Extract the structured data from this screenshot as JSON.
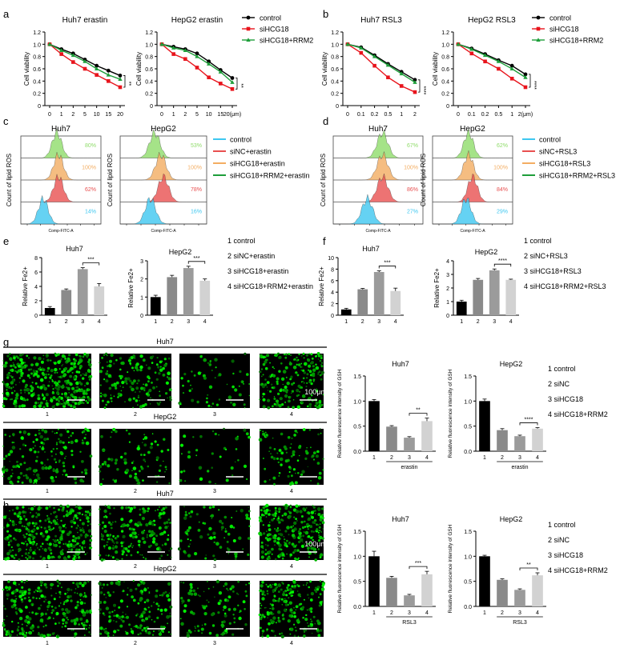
{
  "panel_letters": [
    "a",
    "b",
    "c",
    "d",
    "e",
    "f",
    "g",
    "h"
  ],
  "viability_legend": {
    "a": [
      "control",
      "siHCG18",
      "siHCG18+RRM2"
    ],
    "b": [
      "control",
      "siHCG18",
      "siHCG18+RRM2"
    ]
  },
  "flow_legend": {
    "c": [
      "control",
      "siNC+erastin",
      "siHCG18+erastin",
      "siHCG18+RRM2+erastin"
    ],
    "d": [
      "control",
      "siNC+RSL3",
      "siHCG18+RSL3",
      "siHCG18+RRM2+RSL3"
    ]
  },
  "flow_ylabel": "Count of lipid ROS",
  "flow_xlabel": "Comp-FITC-A",
  "flow_percents": {
    "c_huh7": [
      "80%",
      "100%",
      "62%",
      "14%"
    ],
    "c_hepg2": [
      "53%",
      "100%",
      "78%",
      "16%"
    ],
    "d_huh7": [
      "67%",
      "100%",
      "86%",
      "27%"
    ],
    "d_hepg2": [
      "62%",
      "100%",
      "84%",
      "29%"
    ]
  },
  "flow_titles": {
    "huh7": "Huh7",
    "hepg2": "HepG2"
  },
  "fe_legend": {
    "e": [
      "1 control",
      "2 siNC+erastin",
      "3 siHCG18+erastin",
      "4 siHCG18+RRM2+erastin"
    ],
    "f": [
      "1 control",
      "2 siNC+RSL3",
      "3 siHCG18+RSL3",
      "4 siHCG18+RRM2+RSL3"
    ]
  },
  "gsh_legend": [
    "1 control",
    "2 siNC",
    "3 siHCG18",
    "4 siHCG18+RRM2"
  ],
  "micro": {
    "huh7": "Huh7",
    "hepg2": "HepG2",
    "scale": "100μm",
    "lane_labels": [
      "1",
      "2",
      "3",
      "4"
    ]
  },
  "colors": {
    "control": "#000000",
    "siHCG18": "#e8141c",
    "siHCG18_RRM2": "#1e9e3a",
    "cyan": "#3ec7f0",
    "red": "#e85050",
    "orange": "#f3ad62",
    "green": "#8fdc6a",
    "bar1": "#000000",
    "bar2": "#8a8a8a",
    "bar3": "#9b9b9b",
    "bar4": "#d2d2d2"
  },
  "chart_data": [
    {
      "type": "line",
      "panel": "a",
      "title": "Huh7 erastin",
      "ylabel": "Cell viability",
      "xlabel": "",
      "x": [
        "0",
        "1",
        "2",
        "5",
        "10",
        "15",
        "20"
      ],
      "ylim": [
        0,
        1.2
      ],
      "yticks": [
        "0",
        "0.2",
        "0.4",
        "0.6",
        "0.8",
        "1.0",
        "1.2"
      ],
      "series": [
        {
          "name": "control",
          "values": [
            1.0,
            0.92,
            0.85,
            0.75,
            0.65,
            0.57,
            0.49
          ]
        },
        {
          "name": "siHCG18",
          "values": [
            1.0,
            0.84,
            0.71,
            0.6,
            0.5,
            0.4,
            0.3
          ]
        },
        {
          "name": "siHCG18+RRM2",
          "values": [
            1.0,
            0.9,
            0.82,
            0.72,
            0.6,
            0.5,
            0.43
          ]
        }
      ],
      "significance": "**"
    },
    {
      "type": "line",
      "panel": "a",
      "title": "HepG2 erastin",
      "ylabel": "Cell viability",
      "xlabel": "",
      "x": [
        "0",
        "1",
        "2",
        "5",
        "10",
        "15",
        "20(μm)"
      ],
      "ylim": [
        0,
        1.2
      ],
      "yticks": [
        "0",
        "0.2",
        "0.4",
        "0.6",
        "0.8",
        "1.0",
        "1.2"
      ],
      "series": [
        {
          "name": "control",
          "values": [
            1.0,
            0.96,
            0.92,
            0.85,
            0.72,
            0.58,
            0.45
          ]
        },
        {
          "name": "siHCG18",
          "values": [
            1.0,
            0.84,
            0.76,
            0.62,
            0.46,
            0.36,
            0.27
          ]
        },
        {
          "name": "siHCG18+RRM2",
          "values": [
            1.0,
            0.94,
            0.9,
            0.8,
            0.68,
            0.55,
            0.38
          ]
        }
      ],
      "significance": "**"
    },
    {
      "type": "line",
      "panel": "b",
      "title": "Huh7 RSL3",
      "ylabel": "Cell viability",
      "xlabel": "",
      "x": [
        "0",
        "0.1",
        "0.2",
        "0.5",
        "1",
        "2"
      ],
      "ylim": [
        0,
        1.2
      ],
      "yticks": [
        "0",
        "0.2",
        "0.4",
        "0.6",
        "0.8",
        "1.0",
        "1.2"
      ],
      "series": [
        {
          "name": "control",
          "values": [
            1.0,
            0.95,
            0.82,
            0.68,
            0.55,
            0.42
          ]
        },
        {
          "name": "siHCG18",
          "values": [
            1.0,
            0.86,
            0.65,
            0.46,
            0.32,
            0.22
          ]
        },
        {
          "name": "siHCG18+RRM2",
          "values": [
            1.0,
            0.94,
            0.8,
            0.66,
            0.52,
            0.38
          ]
        }
      ],
      "significance": "****"
    },
    {
      "type": "line",
      "panel": "b",
      "title": "HepG2 RSL3",
      "ylabel": "Cell viability",
      "xlabel": "",
      "x": [
        "0",
        "0.1",
        "0.2",
        "0.5",
        "1",
        "2(μm)"
      ],
      "ylim": [
        0,
        1.2
      ],
      "yticks": [
        "0",
        "0.2",
        "0.4",
        "0.6",
        "0.8",
        "1.0",
        "1.2"
      ],
      "series": [
        {
          "name": "control",
          "values": [
            1.0,
            0.93,
            0.84,
            0.74,
            0.65,
            0.51
          ]
        },
        {
          "name": "siHCG18",
          "values": [
            1.0,
            0.85,
            0.72,
            0.6,
            0.44,
            0.3
          ]
        },
        {
          "name": "siHCG18+RRM2",
          "values": [
            1.0,
            0.92,
            0.82,
            0.72,
            0.6,
            0.46
          ]
        }
      ],
      "significance": "****"
    },
    {
      "type": "bar",
      "panel": "e",
      "title": "Huh7",
      "ylabel": "Relative Fe2+",
      "categories": [
        "1",
        "2",
        "3",
        "4"
      ],
      "values": [
        1.0,
        3.5,
        6.4,
        4.0
      ],
      "errors": [
        0.2,
        0.15,
        0.2,
        0.4
      ],
      "ylim": [
        0,
        8
      ],
      "yticks": [
        "0",
        "2",
        "4",
        "6",
        "8"
      ],
      "significance": "***",
      "sig_between": [
        3,
        4
      ]
    },
    {
      "type": "bar",
      "panel": "e",
      "title": "HepG2",
      "ylabel": "Relative Fe2+",
      "categories": [
        "1",
        "2",
        "3",
        "4"
      ],
      "values": [
        1.0,
        2.1,
        2.6,
        1.9
      ],
      "errors": [
        0.1,
        0.1,
        0.1,
        0.1
      ],
      "ylim": [
        0,
        3
      ],
      "yticks": [
        "0",
        "1",
        "2",
        "3"
      ],
      "significance": "***",
      "sig_between": [
        3,
        4
      ]
    },
    {
      "type": "bar",
      "panel": "f",
      "title": "Huh7",
      "ylabel": "Relative Fe2+",
      "categories": [
        "1",
        "2",
        "3",
        "4"
      ],
      "values": [
        1.0,
        4.5,
        7.5,
        4.2
      ],
      "errors": [
        0.2,
        0.15,
        0.2,
        0.5
      ],
      "ylim": [
        0,
        10
      ],
      "yticks": [
        "0",
        "2",
        "4",
        "6",
        "8",
        "10"
      ],
      "significance": "***",
      "sig_between": [
        3,
        4
      ]
    },
    {
      "type": "bar",
      "panel": "f",
      "title": "HepG2",
      "ylabel": "Relative Fe2+",
      "categories": [
        "1",
        "2",
        "3",
        "4"
      ],
      "values": [
        1.0,
        2.6,
        3.3,
        2.6
      ],
      "errors": [
        0.1,
        0.1,
        0.1,
        0.05
      ],
      "ylim": [
        0,
        4
      ],
      "yticks": [
        "0",
        "1",
        "2",
        "3",
        "4"
      ],
      "significance": "****",
      "sig_between": [
        3,
        4
      ]
    },
    {
      "type": "bar",
      "panel": "g",
      "title": "Huh7",
      "ylabel": "Relative fluorescence intensity of GSH",
      "categories": [
        "1",
        "2",
        "3",
        "4"
      ],
      "values": [
        1.0,
        0.49,
        0.27,
        0.6
      ],
      "errors": [
        0.03,
        0.02,
        0.02,
        0.06
      ],
      "ylim": [
        0,
        1.5
      ],
      "yticks": [
        "0.0",
        "0.5",
        "1.0",
        "1.5"
      ],
      "group_label": "erastin",
      "significance": "**",
      "sig_between": [
        3,
        4
      ]
    },
    {
      "type": "bar",
      "panel": "g",
      "title": "HepG2",
      "ylabel": "Relative fluorescence intensity of GSH",
      "categories": [
        "1",
        "2",
        "3",
        "4"
      ],
      "values": [
        1.0,
        0.42,
        0.3,
        0.45
      ],
      "errors": [
        0.04,
        0.03,
        0.02,
        0.02
      ],
      "ylim": [
        0,
        1.5
      ],
      "yticks": [
        "0.0",
        "0.5",
        "1.0",
        "1.5"
      ],
      "group_label": "erastin",
      "significance": "****",
      "sig_between": [
        3,
        4
      ]
    },
    {
      "type": "bar",
      "panel": "h",
      "title": "Huh7",
      "ylabel": "Relative fluorescence intensity of GSH",
      "categories": [
        "1",
        "2",
        "3",
        "4"
      ],
      "values": [
        1.0,
        0.57,
        0.22,
        0.64
      ],
      "errors": [
        0.1,
        0.03,
        0.02,
        0.06
      ],
      "ylim": [
        0,
        1.5
      ],
      "yticks": [
        "0.0",
        "0.5",
        "1.0",
        "1.5"
      ],
      "group_label": "RSL3",
      "significance": "***",
      "sig_between": [
        3,
        4
      ]
    },
    {
      "type": "bar",
      "panel": "h",
      "title": "HepG2",
      "ylabel": "Relative fluorescence intensity of GSH",
      "categories": [
        "1",
        "2",
        "3",
        "4"
      ],
      "values": [
        1.0,
        0.53,
        0.33,
        0.62
      ],
      "errors": [
        0.02,
        0.02,
        0.02,
        0.05
      ],
      "ylim": [
        0,
        1.5
      ],
      "yticks": [
        "0.0",
        "0.5",
        "1.0",
        "1.5"
      ],
      "group_label": "RSL3",
      "significance": "**",
      "sig_between": [
        3,
        4
      ]
    }
  ]
}
